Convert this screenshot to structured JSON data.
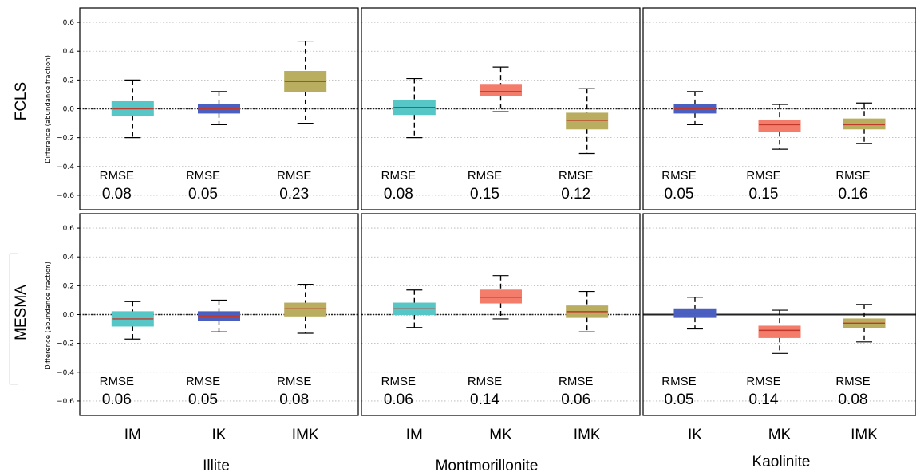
{
  "figure": {
    "rows": [
      {
        "label": "FCLS",
        "ylabel": "Difference (abundance fraction)"
      },
      {
        "label": "MESMA",
        "ylabel": "Difference (abundance fraction)"
      }
    ],
    "groups": [
      "Illite",
      "Montmorillonite",
      "Kaolinite"
    ],
    "rmse_label": "RMSE",
    "y_ticks": [
      "0.6",
      "0.4",
      "0.2",
      "0.0",
      "−0.2",
      "−0.4",
      "−0.6"
    ]
  },
  "colors": {
    "cyan": "#56c6c6",
    "blue": "#4a5fbf",
    "olive": "#b9ad60",
    "salmon": "#f47c6a",
    "median": "#c0392b"
  },
  "chart_data": [
    {
      "type": "box",
      "row": "FCLS",
      "group": "Illite",
      "ylim": [
        -0.7,
        0.7
      ],
      "categories": [
        "IM",
        "IK",
        "IMK"
      ],
      "boxes": [
        {
          "q1": -0.05,
          "median": 0.0,
          "q3": 0.05,
          "whisker_low": -0.2,
          "whisker_high": 0.2,
          "color": "cyan"
        },
        {
          "q1": -0.03,
          "median": 0.0,
          "q3": 0.03,
          "whisker_low": -0.11,
          "whisker_high": 0.12,
          "color": "blue"
        },
        {
          "q1": 0.12,
          "median": 0.19,
          "q3": 0.26,
          "whisker_low": -0.1,
          "whisker_high": 0.47,
          "color": "olive"
        }
      ],
      "rmse": [
        "0.08",
        "0.05",
        "0.23"
      ]
    },
    {
      "type": "box",
      "row": "FCLS",
      "group": "Montmorillonite",
      "ylim": [
        -0.7,
        0.7
      ],
      "categories": [
        "IM",
        "MK",
        "IMK"
      ],
      "boxes": [
        {
          "q1": -0.04,
          "median": 0.01,
          "q3": 0.06,
          "whisker_low": -0.2,
          "whisker_high": 0.21,
          "color": "cyan"
        },
        {
          "q1": 0.09,
          "median": 0.12,
          "q3": 0.17,
          "whisker_low": -0.02,
          "whisker_high": 0.29,
          "color": "salmon"
        },
        {
          "q1": -0.14,
          "median": -0.08,
          "q3": -0.03,
          "whisker_low": -0.31,
          "whisker_high": 0.14,
          "color": "olive"
        }
      ],
      "rmse": [
        "0.08",
        "0.15",
        "0.12"
      ]
    },
    {
      "type": "box",
      "row": "FCLS",
      "group": "Kaolinite",
      "ylim": [
        -0.7,
        0.7
      ],
      "categories": [
        "IK",
        "MK",
        "IMK"
      ],
      "boxes": [
        {
          "q1": -0.03,
          "median": 0.0,
          "q3": 0.03,
          "whisker_low": -0.11,
          "whisker_high": 0.12,
          "color": "blue"
        },
        {
          "q1": -0.16,
          "median": -0.11,
          "q3": -0.08,
          "whisker_low": -0.28,
          "whisker_high": 0.03,
          "color": "salmon"
        },
        {
          "q1": -0.14,
          "median": -0.11,
          "q3": -0.07,
          "whisker_low": -0.24,
          "whisker_high": 0.04,
          "color": "olive"
        }
      ],
      "rmse": [
        "0.05",
        "0.15",
        "0.16"
      ]
    },
    {
      "type": "box",
      "row": "MESMA",
      "group": "Illite",
      "ylim": [
        -0.7,
        0.7
      ],
      "categories": [
        "IM",
        "IK",
        "IMK"
      ],
      "boxes": [
        {
          "q1": -0.08,
          "median": -0.03,
          "q3": 0.02,
          "whisker_low": -0.17,
          "whisker_high": 0.09,
          "color": "cyan"
        },
        {
          "q1": -0.04,
          "median": -0.01,
          "q3": 0.02,
          "whisker_low": -0.12,
          "whisker_high": 0.1,
          "color": "blue"
        },
        {
          "q1": -0.01,
          "median": 0.04,
          "q3": 0.08,
          "whisker_low": -0.13,
          "whisker_high": 0.21,
          "color": "olive"
        }
      ],
      "rmse": [
        "0.06",
        "0.05",
        "0.08"
      ]
    },
    {
      "type": "box",
      "row": "MESMA",
      "group": "Montmorillonite",
      "ylim": [
        -0.7,
        0.7
      ],
      "categories": [
        "IM",
        "MK",
        "IMK"
      ],
      "boxes": [
        {
          "q1": 0.0,
          "median": 0.04,
          "q3": 0.08,
          "whisker_low": -0.09,
          "whisker_high": 0.17,
          "color": "cyan"
        },
        {
          "q1": 0.08,
          "median": 0.12,
          "q3": 0.17,
          "whisker_low": -0.03,
          "whisker_high": 0.27,
          "color": "salmon"
        },
        {
          "q1": -0.02,
          "median": 0.02,
          "q3": 0.06,
          "whisker_low": -0.12,
          "whisker_high": 0.16,
          "color": "olive"
        }
      ],
      "rmse": [
        "0.06",
        "0.14",
        "0.06"
      ]
    },
    {
      "type": "box",
      "row": "MESMA",
      "group": "Kaolinite",
      "ylim": [
        -0.7,
        0.7
      ],
      "categories": [
        "IK",
        "MK",
        "IMK"
      ],
      "boxes": [
        {
          "q1": -0.02,
          "median": 0.01,
          "q3": 0.04,
          "whisker_low": -0.1,
          "whisker_high": 0.12,
          "color": "blue"
        },
        {
          "q1": -0.16,
          "median": -0.11,
          "q3": -0.08,
          "whisker_low": -0.27,
          "whisker_high": 0.03,
          "color": "salmon"
        },
        {
          "q1": -0.09,
          "median": -0.06,
          "q3": -0.03,
          "whisker_low": -0.19,
          "whisker_high": 0.07,
          "color": "olive"
        }
      ],
      "rmse": [
        "0.05",
        "0.14",
        "0.08"
      ]
    }
  ]
}
